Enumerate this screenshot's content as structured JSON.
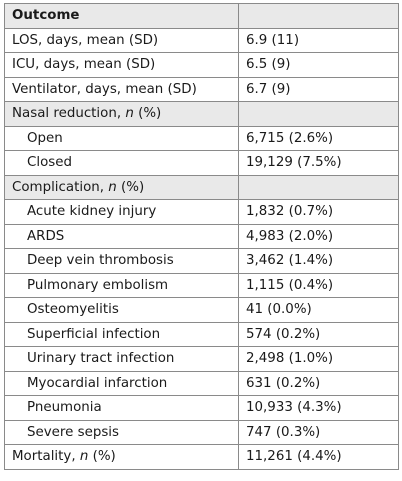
{
  "header": {
    "label": "Outcome",
    "value": ""
  },
  "rows": [
    {
      "type": "row",
      "label": "LOS, days, mean (SD)",
      "value": "6.9 (11)"
    },
    {
      "type": "row",
      "label": "ICU, days, mean (SD)",
      "value": "6.5 (9)"
    },
    {
      "type": "row",
      "label": "Ventilator, days, mean (SD)",
      "value": "6.7 (9)"
    },
    {
      "type": "section",
      "label_pre": "Nasal reduction, ",
      "label_italic": "n",
      "label_post": " (%)",
      "value": ""
    },
    {
      "type": "sub",
      "label": "Open",
      "value": "6,715 (2.6%)"
    },
    {
      "type": "sub",
      "label": "Closed",
      "value": "19,129 (7.5%)"
    },
    {
      "type": "section",
      "label_pre": "Complication, ",
      "label_italic": "n",
      "label_post": " (%)",
      "value": ""
    },
    {
      "type": "sub",
      "label": "Acute kidney injury",
      "value": "1,832 (0.7%)"
    },
    {
      "type": "sub",
      "label": "ARDS",
      "value": "4,983 (2.0%)"
    },
    {
      "type": "sub",
      "label": "Deep vein thrombosis",
      "value": "3,462 (1.4%)"
    },
    {
      "type": "sub",
      "label": "Pulmonary embolism",
      "value": "1,115 (0.4%)"
    },
    {
      "type": "sub",
      "label": "Osteomyelitis",
      "value": "41 (0.0%)"
    },
    {
      "type": "sub",
      "label": "Superficial infection",
      "value": "574 (0.2%)"
    },
    {
      "type": "sub",
      "label": "Urinary tract infection",
      "value": "2,498 (1.0%)"
    },
    {
      "type": "sub",
      "label": "Myocardial infarction",
      "value": "631 (0.2%)"
    },
    {
      "type": "sub",
      "label": "Pneumonia",
      "value": "10,933 (4.3%)"
    },
    {
      "type": "sub",
      "label": "Severe sepsis",
      "value": "747 (0.3%)"
    },
    {
      "type": "row_italic",
      "label_pre": "Mortality, ",
      "label_italic": "n",
      "label_post": " (%)",
      "value": "11,261 (4.4%)"
    }
  ]
}
